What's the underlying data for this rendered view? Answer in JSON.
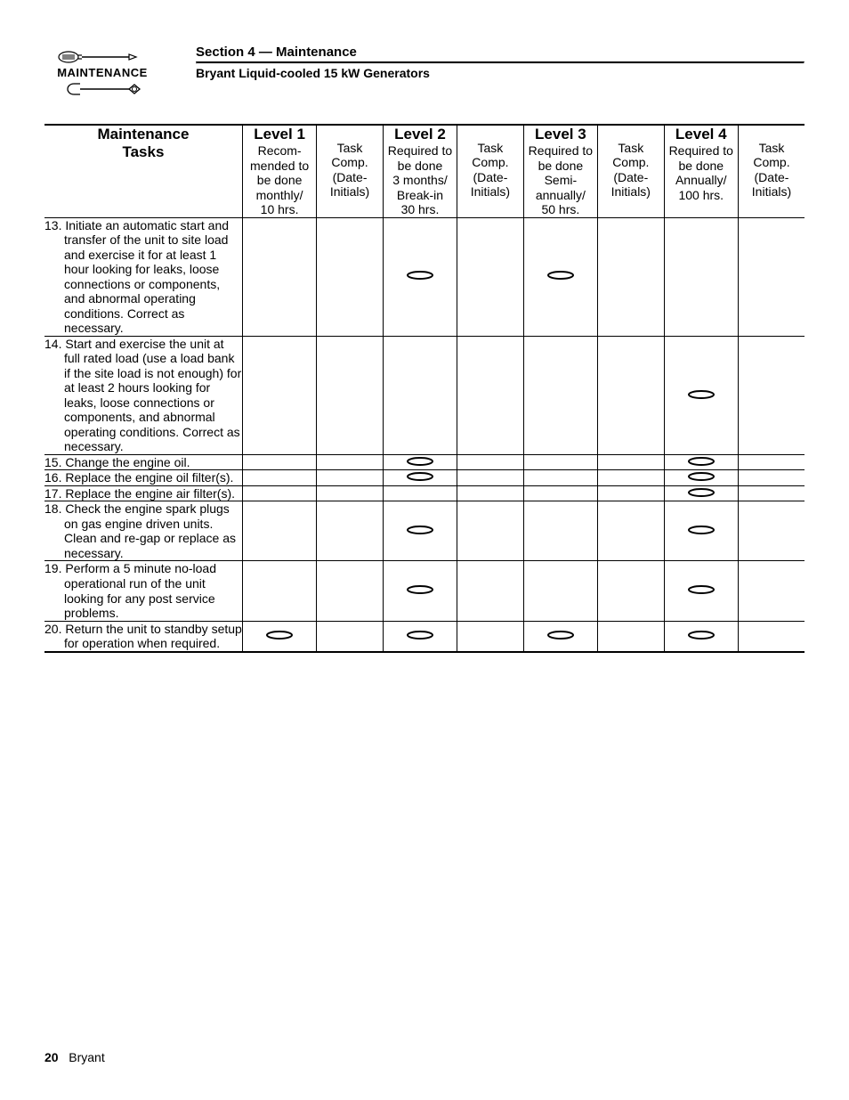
{
  "header": {
    "logo_label": "MAINTENANCE",
    "section_title": "Section 4 — Maintenance",
    "subtitle": "Bryant Liquid-cooled 15 kW Generators"
  },
  "table": {
    "header": {
      "tasks_title": "Maintenance Tasks",
      "levels": [
        {
          "title": "Level 1",
          "desc": "Recom-mended to be done monthly/ 10 hrs."
        },
        {
          "title": "Level 2",
          "desc": "Required to be done 3 months/ Break-in 30 hrs."
        },
        {
          "title": "Level 3",
          "desc": "Required to be done Semi-annually/ 50 hrs."
        },
        {
          "title": "Level 4",
          "desc": "Required to be done Annually/ 100 hrs."
        }
      ],
      "comp_label": "Task Comp. (Date-Initials)"
    },
    "rows": [
      {
        "text": "13. Initiate an automatic start and transfer of the unit to site load and exercise it for at least 1 hour looking for leaks, loose connections or components, and abnormal operating conditions. Correct as necessary.",
        "marks": [
          false,
          true,
          true,
          false
        ]
      },
      {
        "text": "14. Start and exercise the unit at full rated load (use a load bank if the site load is not enough) for at least 2 hours looking for leaks, loose connections or components, and abnormal operating conditions. Correct as necessary.",
        "marks": [
          false,
          false,
          false,
          true
        ]
      },
      {
        "text": "15. Change the engine oil.",
        "marks": [
          false,
          true,
          false,
          true
        ]
      },
      {
        "text": "16. Replace the engine oil filter(s).",
        "marks": [
          false,
          true,
          false,
          true
        ]
      },
      {
        "text": "17. Replace the engine air filter(s).",
        "marks": [
          false,
          false,
          false,
          true
        ]
      },
      {
        "text": "18. Check the engine spark plugs on gas engine driven units. Clean and re-gap or replace as necessary.",
        "marks": [
          false,
          true,
          false,
          true
        ]
      },
      {
        "text": "19. Perform a 5 minute no-load operational run of the unit looking for any post service problems.",
        "marks": [
          false,
          true,
          false,
          true
        ]
      },
      {
        "text": "20. Return the unit to standby setup for operation when required.",
        "marks": [
          true,
          true,
          true,
          true
        ]
      }
    ]
  },
  "footer": {
    "page": "20",
    "brand": "Bryant"
  },
  "style": {
    "oval_stroke": "#000000",
    "oval_fill": "none",
    "oval_w": 32,
    "oval_h": 12,
    "oval_stroke_width": 2
  }
}
